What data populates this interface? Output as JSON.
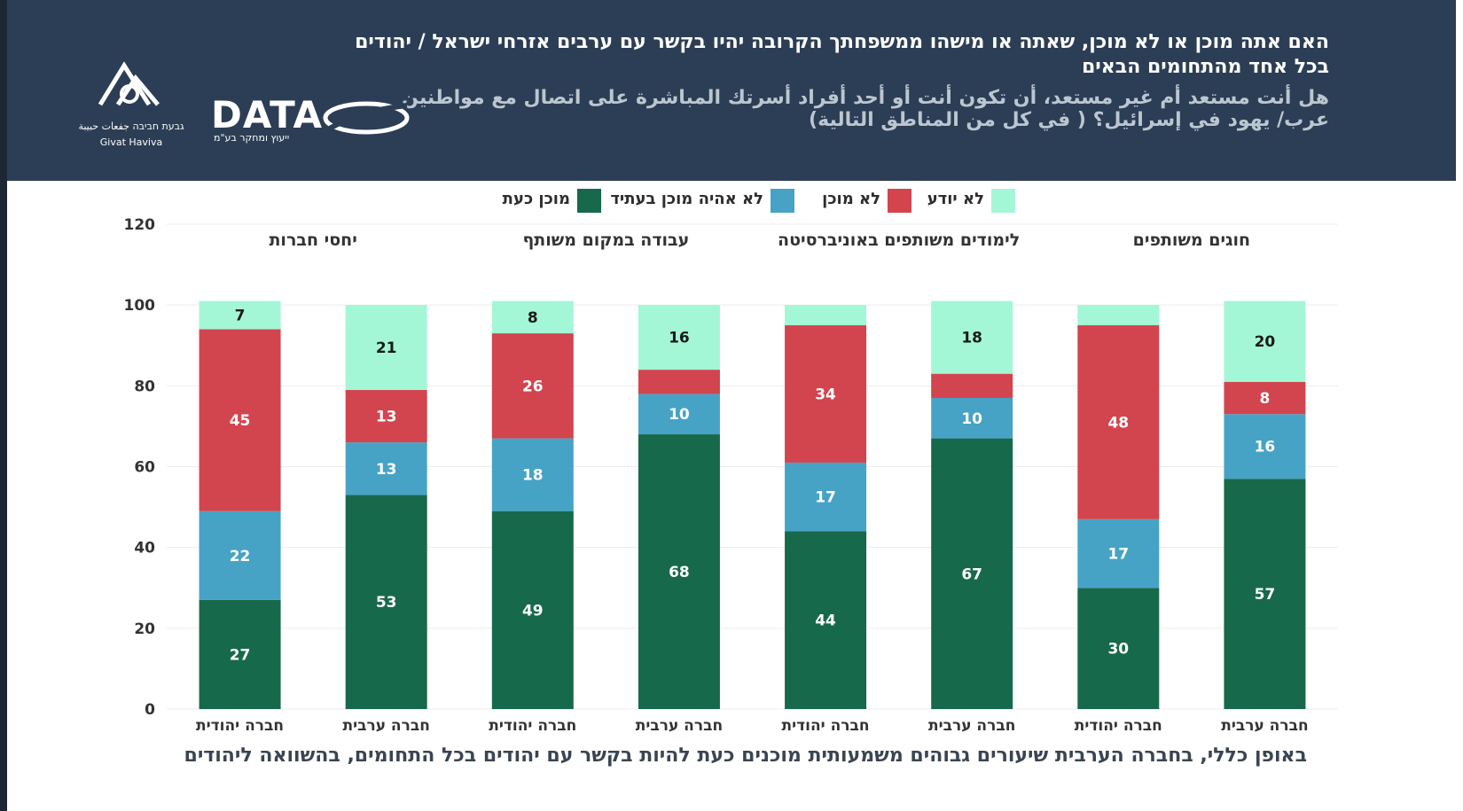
{
  "header": {
    "question_he": "האם אתה מוכן או לא מוכן, שאתה או מישהו ממשפחתך הקרובה יהיו בקשר עם ערבים אזרחי ישראל / יהודים בכל אחד מהתחומים הבאים",
    "question_ar": "هل أنت مستعد أم غير مستعد، أن تكون أنت أو أحد أفراد أسرتك المباشرة على اتصال مع مواطنين عرب/ يهود في إسرائيل؟ ( في كل من المناطق التالية)",
    "logo_data_word": "DATA",
    "logo_data_sub": "ייעוץ ומחקר בע\"מ",
    "logo_gh_he": "גבעת חביבה جفعات حبيبة",
    "logo_gh_en": "Givat Haviva"
  },
  "footer_text": "באופן כללי, בחברה הערבית שיעורים גבוהים משמעותית מוכנים כעת להיות בקשר עם יהודים בכל התחומים, בהשוואה ליהודים",
  "colors": {
    "ready_now": "#17694b",
    "not_ready_future": "#47a3c5",
    "not_ready": "#d2454e",
    "dont_know": "#a3f7d6"
  },
  "chart_data": {
    "type": "bar",
    "stacked": true,
    "ylim": [
      0,
      120
    ],
    "yticks": [
      0,
      20,
      40,
      60,
      80,
      100,
      120
    ],
    "legend": [
      {
        "key": "ready_now",
        "label": "מוכן כעת"
      },
      {
        "key": "not_ready_future",
        "label": "לא אהיה מוכן בעתיד"
      },
      {
        "key": "not_ready",
        "label": "לא מוכן"
      },
      {
        "key": "dont_know",
        "label": "לא יודע"
      }
    ],
    "groups": [
      {
        "title": "יחסי חברות",
        "bars": [
          {
            "label": "חברה יהודית",
            "ready_now": 27,
            "not_ready_future": 22,
            "not_ready": 45,
            "dont_know": 7,
            "shown": [
              "27",
              "22",
              "45",
              "7"
            ]
          },
          {
            "label": "חברה ערבית",
            "ready_now": 53,
            "not_ready_future": 13,
            "not_ready": 13,
            "dont_know": 21,
            "shown": [
              "53",
              "13",
              "13",
              "21"
            ]
          }
        ]
      },
      {
        "title": "עבודה במקום משותף",
        "bars": [
          {
            "label": "חברה יהודית",
            "ready_now": 49,
            "not_ready_future": 18,
            "not_ready": 26,
            "dont_know": 8,
            "shown": [
              "49",
              "18",
              "26",
              "8"
            ]
          },
          {
            "label": "חברה ערבית",
            "ready_now": 68,
            "not_ready_future": 10,
            "not_ready": 6,
            "dont_know": 16,
            "shown": [
              "68",
              "10",
              "",
              "16"
            ]
          }
        ]
      },
      {
        "title": "לימודים משותפים באוניברסיטה",
        "bars": [
          {
            "label": "חברה יהודית",
            "ready_now": 44,
            "not_ready_future": 17,
            "not_ready": 34,
            "dont_know": 5,
            "shown": [
              "44",
              "17",
              "34",
              ""
            ]
          },
          {
            "label": "חברה ערבית",
            "ready_now": 67,
            "not_ready_future": 10,
            "not_ready": 6,
            "dont_know": 18,
            "shown": [
              "67",
              "10",
              "",
              "18"
            ]
          }
        ]
      },
      {
        "title": "חוגים משותפים",
        "bars": [
          {
            "label": "חברה יהודית",
            "ready_now": 30,
            "not_ready_future": 17,
            "not_ready": 48,
            "dont_know": 5,
            "shown": [
              "30",
              "17",
              "48",
              ""
            ]
          },
          {
            "label": "חברה ערבית",
            "ready_now": 57,
            "not_ready_future": 16,
            "not_ready": 8,
            "dont_know": 20,
            "shown": [
              "57",
              "16",
              "8",
              "20"
            ]
          }
        ]
      }
    ]
  }
}
